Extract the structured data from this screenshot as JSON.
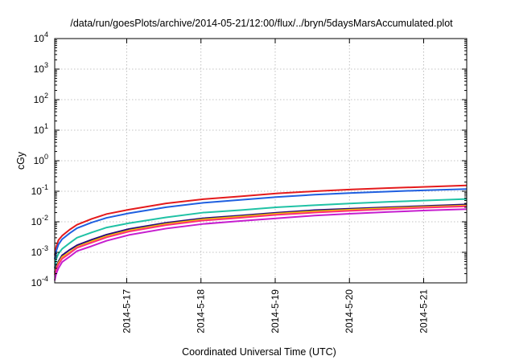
{
  "chart_data": {
    "type": "line",
    "title": "/data/run/goesPlots/archive/2014-05-21/12:00/flux/../bryn/5daysMarsAccumulated.plot",
    "xlabel": "Coordinated Universal Time (UTC)",
    "ylabel": "cGy",
    "yscale": "log",
    "ylim": [
      0.0001,
      10000
    ],
    "xlim": [
      0,
      5.55
    ],
    "grid": true,
    "legend": "none",
    "xticks": [
      {
        "value": 0.97,
        "label": "2014-5-17"
      },
      {
        "value": 1.97,
        "label": "2014-5-18"
      },
      {
        "value": 2.97,
        "label": "2014-5-19"
      },
      {
        "value": 3.97,
        "label": "2014-5-20"
      },
      {
        "value": 4.97,
        "label": "2014-5-21"
      }
    ],
    "yticks": [
      {
        "value": 0.0001,
        "base": "10",
        "exp": "-4"
      },
      {
        "value": 0.001,
        "base": "10",
        "exp": "-3"
      },
      {
        "value": 0.01,
        "base": "10",
        "exp": "-2"
      },
      {
        "value": 0.1,
        "base": "10",
        "exp": "-1"
      },
      {
        "value": 1,
        "base": "10",
        "exp": "0"
      },
      {
        "value": 10,
        "base": "10",
        "exp": "1"
      },
      {
        "value": 100,
        "base": "10",
        "exp": "2"
      },
      {
        "value": 1000,
        "base": "10",
        "exp": "3"
      },
      {
        "value": 10000,
        "base": "10",
        "exp": "4"
      }
    ],
    "x": [
      0.0,
      0.02,
      0.05,
      0.1,
      0.2,
      0.3,
      0.5,
      0.7,
      1.0,
      1.5,
      2.0,
      2.5,
      3.0,
      3.5,
      4.0,
      4.5,
      5.0,
      5.55
    ],
    "series": [
      {
        "color": "#e41a1c",
        "values": [
          0.0008,
          0.0015,
          0.0025,
          0.0035,
          0.0055,
          0.008,
          0.0125,
          0.018,
          0.025,
          0.04,
          0.055,
          0.068,
          0.085,
          0.1,
          0.115,
          0.127,
          0.14,
          0.155
        ]
      },
      {
        "color": "#1f5fe0",
        "values": [
          0.0006,
          0.0011,
          0.0018,
          0.0027,
          0.0042,
          0.0062,
          0.0095,
          0.0135,
          0.019,
          0.03,
          0.042,
          0.052,
          0.065,
          0.077,
          0.088,
          0.098,
          0.108,
          0.118
        ]
      },
      {
        "color": "#20c2a5",
        "values": [
          0.0003,
          0.0006,
          0.0009,
          0.0013,
          0.002,
          0.003,
          0.0045,
          0.0065,
          0.009,
          0.014,
          0.02,
          0.024,
          0.03,
          0.035,
          0.04,
          0.045,
          0.05,
          0.056
        ]
      },
      {
        "color": "#2a0a7a",
        "values": [
          0.00022,
          0.00035,
          0.0005,
          0.0008,
          0.0012,
          0.0017,
          0.0026,
          0.0038,
          0.0058,
          0.0093,
          0.013,
          0.016,
          0.02,
          0.024,
          0.027,
          0.03,
          0.033,
          0.037
        ]
      },
      {
        "color": "#f2c200",
        "values": [
          0.0002,
          0.0003,
          0.00045,
          0.0007,
          0.001,
          0.0015,
          0.0023,
          0.0034,
          0.0052,
          0.0085,
          0.012,
          0.0148,
          0.0185,
          0.022,
          0.025,
          0.028,
          0.031,
          0.034
        ]
      },
      {
        "color": "#ff2d7a",
        "values": [
          0.00018,
          0.00028,
          0.0004,
          0.00062,
          0.00092,
          0.0014,
          0.0021,
          0.0031,
          0.0048,
          0.0078,
          0.011,
          0.0135,
          0.017,
          0.02,
          0.023,
          0.026,
          0.029,
          0.032
        ]
      },
      {
        "color": "#c61ecf",
        "values": [
          0.00012,
          0.0002,
          0.0003,
          0.00048,
          0.00072,
          0.0011,
          0.0016,
          0.0024,
          0.0037,
          0.006,
          0.0085,
          0.0106,
          0.013,
          0.016,
          0.0185,
          0.021,
          0.0235,
          0.026
        ]
      }
    ]
  }
}
